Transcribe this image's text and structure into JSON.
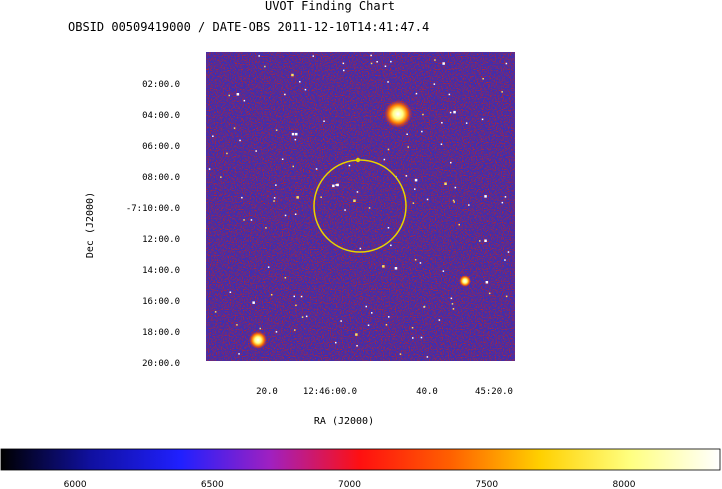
{
  "title": "UVOT Finding Chart",
  "subtitle": "OBSID 00509419000 / DATE-OBS 2011-12-10T14:41:47.4",
  "chart_data": {
    "type": "heatmap",
    "xlabel": "RA (J2000)",
    "ylabel": "Dec (J2000)",
    "x_ticks": [
      "20.0",
      "12:46:00.0",
      "40.0",
      "45:20.0"
    ],
    "y_ticks": [
      "02:00.0",
      "04:00.0",
      "06:00.0",
      "08:00.0",
      "-7:10:00.0",
      "12:00.0",
      "14:00.0",
      "16:00.0",
      "18:00.0",
      "20:00.0"
    ],
    "colorbar": {
      "ticks": [
        "6000",
        "6500",
        "7000",
        "7500",
        "8000"
      ],
      "min": 5730,
      "max": 8350,
      "colormap": [
        "#000000",
        "#1010a0",
        "#2020ff",
        "#a020c0",
        "#ff1010",
        "#ff6000",
        "#ffd000",
        "#ffff80",
        "#ffffff"
      ]
    },
    "image_background": "#3b2fb4",
    "target_circle_color": "#e8d400"
  }
}
